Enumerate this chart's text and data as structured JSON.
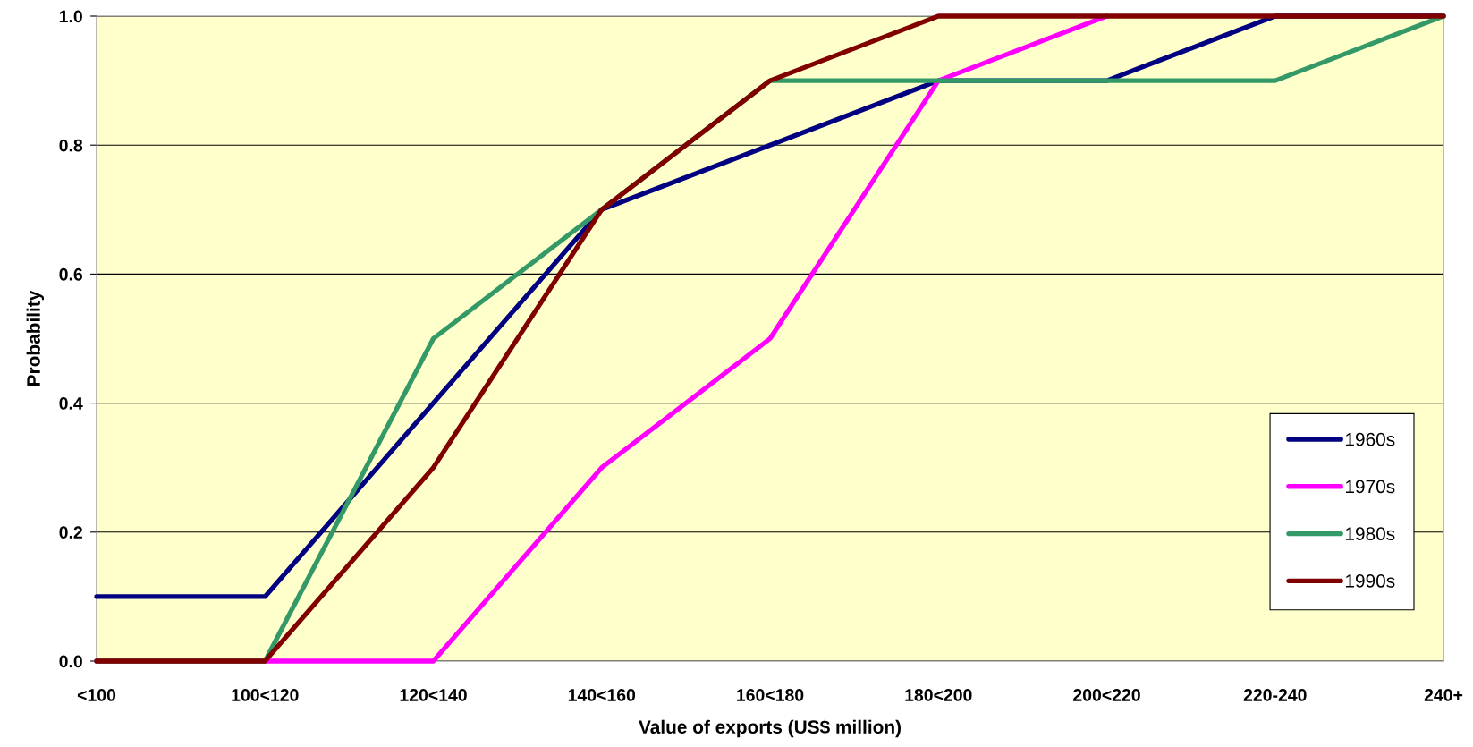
{
  "chart_data": {
    "type": "line",
    "xlabel": "Value of exports (US$ million)",
    "ylabel": "Probability",
    "categories": [
      "<100",
      "100<120",
      "120<140",
      "140<160",
      "160<180",
      "180<200",
      "200<220",
      "220-240",
      "240+"
    ],
    "series": [
      {
        "name": "1960s",
        "color": "#000080",
        "values": [
          0.1,
          0.1,
          0.4,
          0.7,
          0.8,
          0.9,
          0.9,
          1.0,
          1.0
        ]
      },
      {
        "name": "1970s",
        "color": "#ff00ff",
        "values": [
          0.0,
          0.0,
          0.0,
          0.3,
          0.5,
          0.9,
          1.0,
          null,
          null
        ]
      },
      {
        "name": "1980s",
        "color": "#339966",
        "values": [
          0.0,
          0.0,
          0.5,
          0.7,
          0.9,
          0.9,
          0.9,
          0.9,
          1.0
        ]
      },
      {
        "name": "1990s",
        "color": "#800000",
        "values": [
          0.0,
          0.0,
          0.3,
          0.7,
          0.9,
          1.0,
          1.0,
          1.0,
          1.0
        ]
      }
    ],
    "ylim": [
      0,
      1.0
    ],
    "yticks": [
      {
        "value": 0,
        "label": "0.0"
      },
      {
        "value": 0.2,
        "label": "0.2"
      },
      {
        "value": 0.4,
        "label": "0.4"
      },
      {
        "value": 0.6,
        "label": "0.6"
      },
      {
        "value": 0.8,
        "label": "0.8"
      },
      {
        "value": 1.0,
        "label": "1.0"
      }
    ],
    "grid": "y",
    "legend": "right",
    "marker": "none",
    "line_style": "solid"
  }
}
